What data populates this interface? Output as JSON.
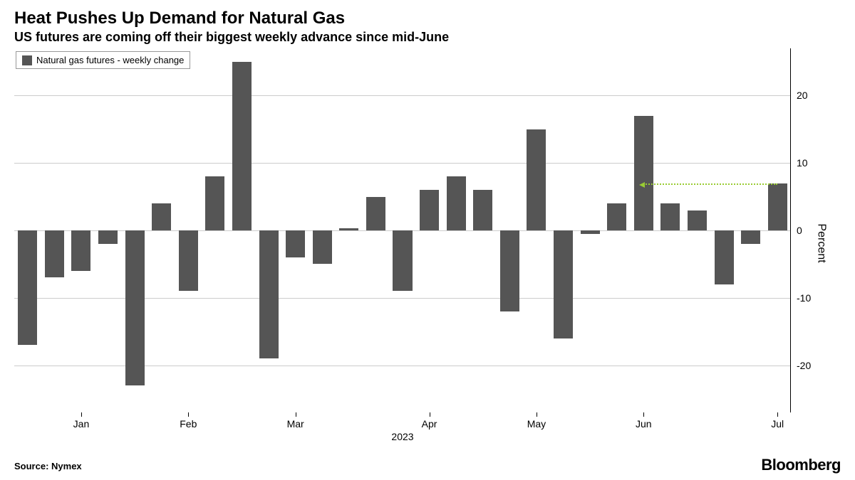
{
  "title": "Heat Pushes Up Demand for Natural Gas",
  "subtitle": "US futures are coming off their biggest weekly advance since mid-June",
  "legend_label": "Natural gas futures - weekly change",
  "source": "Source: Nymex",
  "brand": "Bloomberg",
  "chart": {
    "type": "bar",
    "bar_color": "#555555",
    "background_color": "#ffffff",
    "grid_color": "#cccccc",
    "axis_color": "#000000",
    "arrow_color": "#99cc33",
    "ylim": [
      -27,
      27
    ],
    "yticks": [
      -20,
      -10,
      0,
      10,
      20
    ],
    "y_axis_label": "Percent",
    "x_year_label": "2023",
    "x_months": [
      "Jan",
      "Feb",
      "Mar",
      "Apr",
      "May",
      "Jun",
      "Jul"
    ],
    "x_month_positions": [
      2,
      6,
      10,
      15,
      19,
      23,
      28
    ],
    "values": [
      -17,
      -7,
      -6,
      -2,
      -23,
      4,
      -9,
      8,
      25,
      -19,
      -4,
      -5,
      0.3,
      5,
      -9,
      6,
      8,
      6,
      -12,
      15,
      -16,
      -0.5,
      4,
      17,
      4,
      3,
      -8,
      -2,
      7
    ],
    "arrow": {
      "from_bar": 23,
      "to_bar": 28,
      "y": 7
    }
  }
}
